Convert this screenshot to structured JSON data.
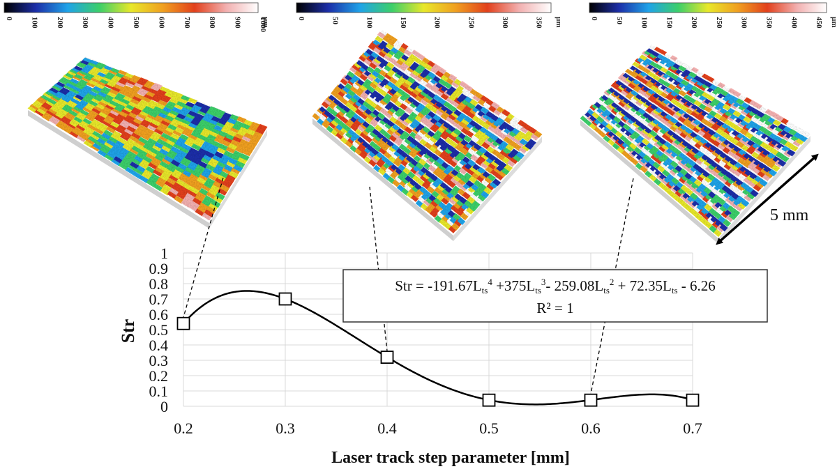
{
  "colors": {
    "curve": "#000000",
    "grid": "#d9d9d9",
    "marker_stroke": "#000000",
    "colormap": [
      "#000000",
      "#1c2ea8",
      "#1fa3e8",
      "#3ccf6a",
      "#e8e82a",
      "#f0a020",
      "#e2401c",
      "#f2b0b0",
      "#ffffff"
    ]
  },
  "colorbars": [
    {
      "ticks": [
        "0",
        "100",
        "200",
        "300",
        "400",
        "500",
        "600",
        "700",
        "800",
        "900",
        "1000"
      ],
      "unit": "µm",
      "max": 1000
    },
    {
      "ticks": [
        "0",
        "50",
        "100",
        "150",
        "200",
        "250",
        "300",
        "350"
      ],
      "unit": "µm",
      "max": 375
    },
    {
      "ticks": [
        "0",
        "50",
        "100",
        "150",
        "200",
        "250",
        "300",
        "350",
        "400",
        "450"
      ],
      "unit": "µm",
      "max": 475
    }
  ],
  "surfaces": [
    {
      "pattern": "coarse-islands",
      "linked_x": 0.2
    },
    {
      "pattern": "dense-ridges",
      "linked_x": 0.4
    },
    {
      "pattern": "parallel-ridges",
      "linked_x": 0.6
    }
  ],
  "scale_label": "5 mm",
  "equation": {
    "lead": "Str = -191.67L",
    "sub": "ts",
    "sup4": "4",
    "t2": " +375L",
    "sup3": "3",
    "t3": "- 259.08L",
    "sup2": "2",
    "t4": " + 72.35L",
    "t5": " - 6.26",
    "r2": "R² = 1"
  },
  "chart_data": {
    "type": "scatter",
    "x": [
      0.2,
      0.3,
      0.4,
      0.5,
      0.6,
      0.7
    ],
    "y": [
      0.54,
      0.7,
      0.32,
      0.04,
      0.04,
      0.04
    ],
    "fit": {
      "kind": "polynomial",
      "coefficients_high_to_low": [
        -191.67,
        375,
        -259.08,
        72.35,
        -6.26
      ]
    },
    "xlabel": "Laser track step parameter [mm]",
    "ylabel": "Str",
    "xlim": [
      0.2,
      0.7
    ],
    "ylim": [
      0,
      1
    ],
    "x_ticks": [
      "0.2",
      "0.3",
      "0.4",
      "0.5",
      "0.6",
      "0.7"
    ],
    "y_ticks": [
      "0",
      "0.1",
      "0.2",
      "0.3",
      "0.4",
      "0.5",
      "0.6",
      "0.7",
      "0.8",
      "0.9",
      "1"
    ],
    "grid": true,
    "legend": "none"
  }
}
